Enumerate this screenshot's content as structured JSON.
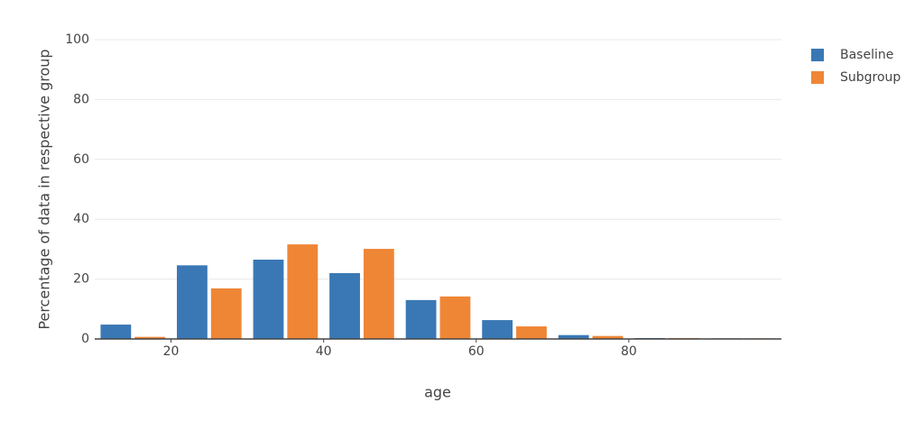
{
  "chart_data": {
    "type": "bar",
    "x_label": "age",
    "y_label": "Percentage of data in respective group",
    "x": [
      15,
      25,
      35,
      45,
      55,
      65,
      75,
      85,
      95
    ],
    "series": [
      {
        "name": "Baseline",
        "color": "#3a78b5",
        "values": [
          4.8,
          24.6,
          26.5,
          22.0,
          13.0,
          6.3,
          1.3,
          0.3,
          0.2
        ]
      },
      {
        "name": "Subgroup",
        "color": "#ef8636",
        "values": [
          0.7,
          16.9,
          31.6,
          30.1,
          14.2,
          4.2,
          1.0,
          0.3,
          0.2
        ]
      }
    ],
    "xlim": [
      10,
      100
    ],
    "xticks": [
      20,
      40,
      60,
      80
    ],
    "ylim": [
      0,
      100
    ],
    "yticks": [
      0,
      20,
      40,
      60,
      80,
      100
    ],
    "grid": true,
    "legend": "right"
  }
}
